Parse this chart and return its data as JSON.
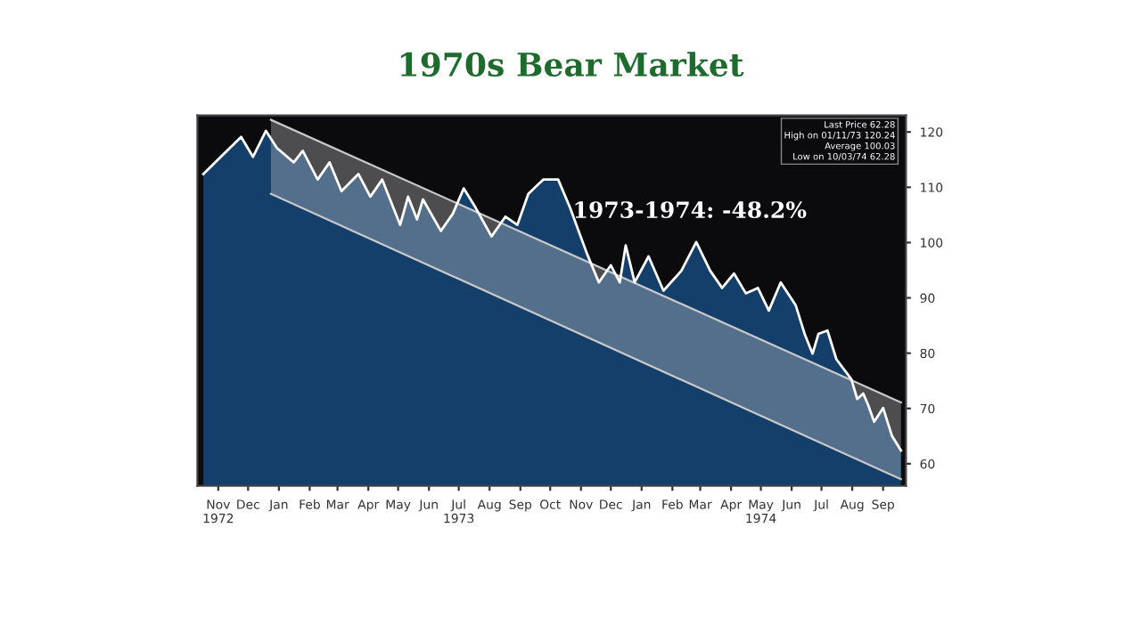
{
  "chart_data": {
    "type": "area",
    "title": "1970s Bear Market",
    "annotations": [
      "1973-1974: -48.2%",
      "Last Price 62.28",
      "High on 01/11/73 120.24",
      "Average 100.03",
      "Low on 10/03/74 62.28"
    ],
    "series": [
      {
        "color": "#143f6b",
        "x": [
          "1972-10-31",
          "1972-12-08",
          "1972-12-20",
          "1973-01-02",
          "1973-01-13",
          "1973-01-30",
          "1973-02-08",
          "1973-02-23",
          "1973-03-07",
          "1973-03-19",
          "1973-04-05",
          "1973-04-17",
          "1973-04-29",
          "1973-05-17",
          "1973-05-25",
          "1973-06-03",
          "1973-06-09",
          "1973-06-27",
          "1973-07-09",
          "1973-07-20",
          "1973-08-01",
          "1973-08-17",
          "1973-08-31",
          "1973-09-12",
          "1973-09-23",
          "1973-10-08",
          "1973-10-23",
          "1973-11-04",
          "1973-11-21",
          "1973-12-03",
          "1973-12-15",
          "1973-12-24",
          "1973-12-30",
          "1974-01-08",
          "1974-01-22",
          "1974-02-06",
          "1974-02-24",
          "1974-03-11",
          "1974-03-25",
          "1974-04-06",
          "1974-04-18",
          "1974-04-30",
          "1974-05-12",
          "1974-05-23",
          "1974-06-04",
          "1974-06-19",
          "1974-06-28",
          "1974-07-06",
          "1974-07-12",
          "1974-07-21",
          "1974-07-30",
          "1974-08-14",
          "1974-08-20",
          "1974-08-26",
          "1974-08-31",
          "1974-09-06",
          "1974-09-15",
          "1974-09-24",
          "1974-10-03"
        ],
        "values": [
          112.4,
          119.1,
          115.5,
          120.2,
          117.1,
          114.5,
          116.6,
          111.4,
          114.5,
          109.3,
          112.4,
          108.3,
          111.4,
          103.2,
          108.3,
          104.2,
          107.8,
          102.1,
          105.2,
          109.8,
          106.3,
          101.1,
          104.7,
          103.2,
          108.8,
          111.4,
          111.4,
          106.3,
          98.0,
          92.8,
          95.9,
          92.8,
          99.5,
          92.8,
          97.5,
          91.3,
          94.9,
          100.1,
          94.9,
          91.8,
          94.4,
          90.8,
          91.8,
          87.7,
          92.8,
          88.7,
          83.5,
          79.9,
          83.5,
          84.1,
          78.9,
          75.3,
          71.7,
          72.7,
          70.6,
          67.6,
          70.1,
          65.0,
          62.4
        ]
      },
      {
        "type": "line",
        "color": "#c8c8c8",
        "x": [
          "1973-01-07",
          "1974-10-03"
        ],
        "values": [
          null,
          null
        ],
        "lower": [
          108.8,
          57.2
        ],
        "upper": [
          122.2,
          71.1
        ]
      },
      {
        "type": "line",
        "color": "#c8c8c8",
        "x": [
          "1973-01-07",
          "1974-10-03"
        ],
        "values": [
          122.2,
          71.1
        ]
      },
      {
        "type": "line",
        "color": "#c8c8c8",
        "x": [
          "1973-01-07",
          "1974-10-03"
        ],
        "values": [
          108.8,
          57.2
        ]
      }
    ],
    "xlim": [
      "1972-10-25",
      "1974-10-08"
    ],
    "xticks": [
      {
        "value": "1972-11-15",
        "label": "Nov\n1972"
      },
      {
        "value": "1972-12-15",
        "label": "Dec"
      },
      {
        "value": "1973-01-15",
        "label": "Jan"
      },
      {
        "value": "1973-02-15",
        "label": "Feb"
      },
      {
        "value": "1973-03-15",
        "label": "Mar"
      },
      {
        "value": "1973-04-15",
        "label": "Apr"
      },
      {
        "value": "1973-05-15",
        "label": "May"
      },
      {
        "value": "1973-06-15",
        "label": "Jun"
      },
      {
        "value": "1973-07-15",
        "label": "Jul\n1973"
      },
      {
        "value": "1973-08-15",
        "label": "Aug"
      },
      {
        "value": "1973-09-15",
        "label": "Sep"
      },
      {
        "value": "1973-10-15",
        "label": "Oct"
      },
      {
        "value": "1973-11-15",
        "label": "Nov"
      },
      {
        "value": "1973-12-15",
        "label": "Dec"
      },
      {
        "value": "1974-01-15",
        "label": "Jan"
      },
      {
        "value": "1974-02-15",
        "label": "Feb"
      },
      {
        "value": "1974-03-15",
        "label": "Mar"
      },
      {
        "value": "1974-04-15",
        "label": "Apr"
      },
      {
        "value": "1974-05-15",
        "label": "May\n1974"
      },
      {
        "value": "1974-06-15",
        "label": "Jun"
      },
      {
        "value": "1974-07-15",
        "label": "Jul"
      },
      {
        "value": "1974-08-15",
        "label": "Aug"
      },
      {
        "value": "1974-09-15",
        "label": "Sep"
      }
    ],
    "ylim": [
      56,
      123
    ],
    "yticks": [
      60,
      70,
      80,
      90,
      100,
      110,
      120
    ],
    "grid": false,
    "legend": false
  }
}
